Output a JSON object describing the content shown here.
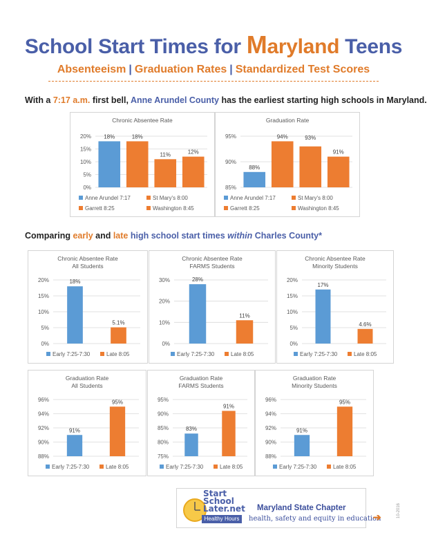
{
  "header": {
    "title_part1": "School Start Times for ",
    "title_m": "M",
    "title_part2": "aryland",
    "title_part3": " Teens",
    "subtitle_items": [
      "Absenteeism",
      "Graduation Rates",
      "Standardized Test Scores"
    ],
    "subtitle_sep": "|"
  },
  "intro": {
    "prefix": "With a ",
    "time": "7:17 a.m.",
    "middle": " first bell, ",
    "county": "Anne Arundel County",
    "suffix": " has the earliest starting high schools in Maryland."
  },
  "section2": {
    "prefix": "Comparing ",
    "early": "early",
    "and": " and ",
    "late": "late",
    "mid": " high school start times ",
    "within": "within",
    "county": " Charles County*"
  },
  "footer": {
    "logo_line1": "Start",
    "logo_line2": "School",
    "logo_line3": "Later.net",
    "logo_badge": "Healthy Hours",
    "chapter": "Maryland State Chapter",
    "tagline": "health, safety and equity in education",
    "arrow": "➔",
    "date": "10-2016"
  },
  "colors": {
    "blue": "#5b9bd5",
    "orange": "#ed7d31",
    "title_blue": "#4a5fa8",
    "title_orange": "#e07b2a"
  },
  "chart_data": [
    {
      "type": "bar",
      "title": "Chronic Absentee Rate",
      "categories": [
        "Anne Arundel 7:17",
        "St Mary's 8:00",
        "Garrett 8:25",
        "Washington 8:45"
      ],
      "values": [
        18,
        18,
        11,
        12
      ],
      "labels": [
        "18%",
        "18%",
        "11%",
        "12%"
      ],
      "colors": [
        "#5b9bd5",
        "#ed7d31",
        "#ed7d31",
        "#ed7d31"
      ],
      "ylim": [
        0,
        20
      ],
      "yticks": [
        "0%",
        "5%",
        "10%",
        "15%",
        "20%"
      ],
      "grid": true,
      "legend": "bottom"
    },
    {
      "type": "bar",
      "title": "Graduation Rate",
      "categories": [
        "Anne Arundel 7:17",
        "St Mary's 8:00",
        "Garrett 8:25",
        "Washington 8:45"
      ],
      "values": [
        88,
        94,
        93,
        91
      ],
      "labels": [
        "88%",
        "94%",
        "93%",
        "91%"
      ],
      "colors": [
        "#5b9bd5",
        "#ed7d31",
        "#ed7d31",
        "#ed7d31"
      ],
      "ylim": [
        85,
        95
      ],
      "yticks": [
        "85%",
        "90%",
        "95%"
      ],
      "grid": true,
      "legend": "bottom"
    },
    {
      "type": "bar",
      "title": "Chronic Absentee Rate",
      "subtitle": "All Students",
      "categories": [
        "Early 7:25-7:30",
        "Late 8:05"
      ],
      "values": [
        18,
        5.1
      ],
      "labels": [
        "18%",
        "5.1%"
      ],
      "colors": [
        "#5b9bd5",
        "#ed7d31"
      ],
      "ylim": [
        0,
        20
      ],
      "yticks": [
        "0%",
        "5%",
        "10%",
        "15%",
        "20%"
      ],
      "grid": true,
      "legend": "bottom"
    },
    {
      "type": "bar",
      "title": "Chronic Absentee Rate",
      "subtitle": "FARMS Students",
      "categories": [
        "Early  7:25-7:30",
        "Late 8:05"
      ],
      "values": [
        28,
        11
      ],
      "labels": [
        "28%",
        "11%"
      ],
      "colors": [
        "#5b9bd5",
        "#ed7d31"
      ],
      "ylim": [
        0,
        30
      ],
      "yticks": [
        "0%",
        "10%",
        "20%",
        "30%"
      ],
      "grid": true,
      "legend": "bottom"
    },
    {
      "type": "bar",
      "title": "Chronic Absentee Rate",
      "subtitle": "Minority Students",
      "categories": [
        "Early  7:25-7:30",
        "Late 8:05"
      ],
      "values": [
        17,
        4.6
      ],
      "labels": [
        "17%",
        "4.6%"
      ],
      "colors": [
        "#5b9bd5",
        "#ed7d31"
      ],
      "ylim": [
        0,
        20
      ],
      "yticks": [
        "0%",
        "5%",
        "10%",
        "15%",
        "20%"
      ],
      "grid": true,
      "legend": "bottom"
    },
    {
      "type": "bar",
      "title": "Graduation Rate",
      "subtitle": "All Students",
      "categories": [
        "Early 7:25-7:30",
        "Late 8:05"
      ],
      "values": [
        91,
        95
      ],
      "labels": [
        "91%",
        "95%"
      ],
      "colors": [
        "#5b9bd5",
        "#ed7d31"
      ],
      "ylim": [
        88,
        96
      ],
      "yticks": [
        "88%",
        "90%",
        "92%",
        "94%",
        "96%"
      ],
      "grid": true,
      "legend": "bottom"
    },
    {
      "type": "bar",
      "title": "Graduation Rate",
      "subtitle": "FARMS Students",
      "categories": [
        "Early 7:25-7:30",
        "Late 8:05"
      ],
      "values": [
        83,
        91
      ],
      "labels": [
        "83%",
        "91%"
      ],
      "colors": [
        "#5b9bd5",
        "#ed7d31"
      ],
      "ylim": [
        75,
        95
      ],
      "yticks": [
        "75%",
        "80%",
        "85%",
        "90%",
        "95%"
      ],
      "grid": true,
      "legend": "bottom"
    },
    {
      "type": "bar",
      "title": "Graduation Rate",
      "subtitle": "Minority Students",
      "categories": [
        "Early  7:25-7:30",
        "Late 8:05"
      ],
      "values": [
        91,
        95
      ],
      "labels": [
        "91%",
        "95%"
      ],
      "colors": [
        "#5b9bd5",
        "#ed7d31"
      ],
      "ylim": [
        88,
        96
      ],
      "yticks": [
        "88%",
        "90%",
        "92%",
        "94%",
        "96%"
      ],
      "grid": true,
      "legend": "bottom"
    }
  ]
}
